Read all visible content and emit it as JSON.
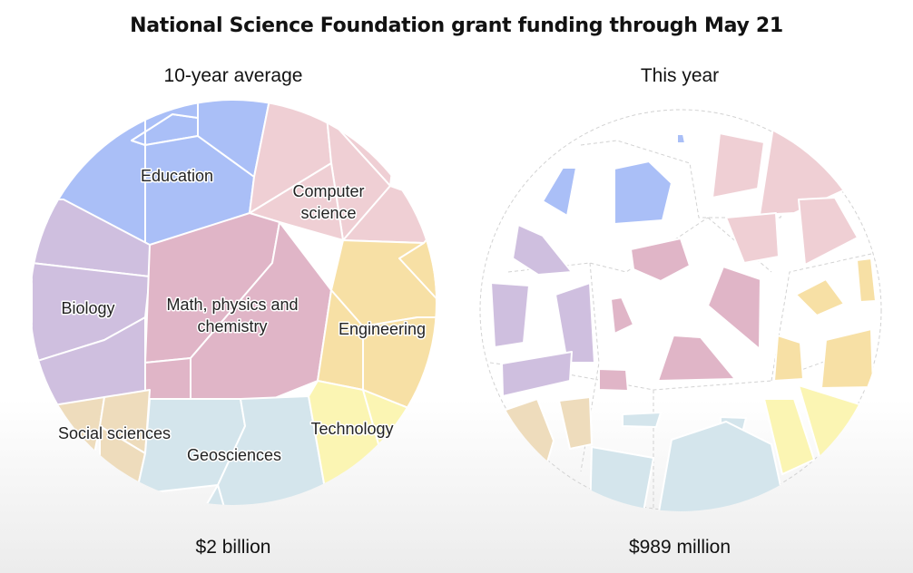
{
  "title": "National Science Foundation grant funding through May 21",
  "colors": {
    "Education": "#aabff7",
    "Computer science": "#efcfd4",
    "Biology": "#cfbfdf",
    "Math, physics and chemistry": "#e0b5c7",
    "Engineering": "#f7e0a5",
    "Social sciences": "#eedcbc",
    "Geosciences": "#d4e5ec",
    "Technology": "#fbf5b3"
  },
  "chart_data": [
    {
      "type": "voronoi-treemap",
      "subtitle": "10-year average",
      "total_label": "$2 billion",
      "categories": [
        "Education",
        "Computer science",
        "Biology",
        "Math, physics and chemistry",
        "Engineering",
        "Social sciences",
        "Geosciences",
        "Technology"
      ]
    },
    {
      "type": "voronoi-treemap",
      "subtitle": "This year",
      "total_label": "$989 million",
      "categories": [
        "Education",
        "Computer science",
        "Biology",
        "Math, physics and chemistry",
        "Engineering",
        "Social sciences",
        "Geosciences",
        "Technology"
      ]
    }
  ]
}
